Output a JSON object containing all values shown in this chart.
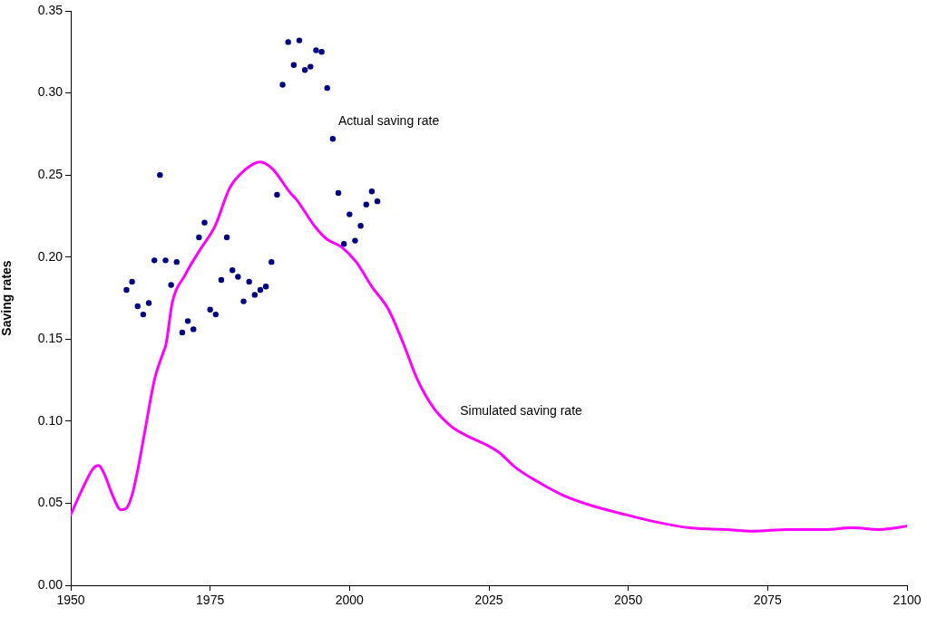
{
  "chart_data": {
    "type": "scatter",
    "ylabel": "Saving rates",
    "xlim": [
      1950,
      2100
    ],
    "xticks": [
      1950,
      1975,
      2000,
      2025,
      2050,
      2075,
      2100
    ],
    "ylim": [
      0,
      0.35
    ],
    "yticks": [
      {
        "value": 0,
        "label": "0.00"
      },
      {
        "value": 0.05,
        "label": "0.05"
      },
      {
        "value": 0.1,
        "label": "0.10"
      },
      {
        "value": 0.15,
        "label": "0.15"
      },
      {
        "value": 0.2,
        "label": "0.20"
      },
      {
        "value": 0.25,
        "label": "0.25"
      },
      {
        "value": 0.3,
        "label": "0.30"
      },
      {
        "value": 0.35,
        "label": "0.35"
      }
    ],
    "grid": false,
    "legend": false,
    "series": [
      {
        "name": "Actual saving rate",
        "marker": "circle",
        "color": "#000080",
        "x": [
          1960,
          1961,
          1962,
          1963,
          1964,
          1965,
          1966,
          1967,
          1968,
          1969,
          1970,
          1971,
          1972,
          1973,
          1974,
          1975,
          1976,
          1977,
          1978,
          1979,
          1980,
          1981,
          1982,
          1983,
          1984,
          1985,
          1986,
          1987,
          1988,
          1989,
          1990,
          1991,
          1992,
          1993,
          1994,
          1995,
          1996,
          1997,
          1998,
          1999,
          2000,
          2001,
          2002,
          2003,
          2004,
          2005
        ],
        "values": [
          0.18,
          0.185,
          0.17,
          0.165,
          0.172,
          0.198,
          0.25,
          0.198,
          0.183,
          0.197,
          0.154,
          0.161,
          0.156,
          0.212,
          0.221,
          0.168,
          0.165,
          0.186,
          0.212,
          0.192,
          0.188,
          0.173,
          0.185,
          0.177,
          0.18,
          0.182,
          0.197,
          0.238,
          0.305,
          0.331,
          0.317,
          0.332,
          0.314,
          0.316,
          0.326,
          0.325,
          0.303,
          0.272,
          0.239,
          0.208,
          0.226,
          0.21,
          0.219,
          0.232,
          0.24,
          0.234
        ]
      },
      {
        "name": "Simulated saving rate",
        "type": "line",
        "marker": "none",
        "line_style": "solid",
        "color": "#ff00ff",
        "x": [
          1950,
          1952,
          1954,
          1955,
          1956,
          1957.6,
          1959,
          1960,
          1961,
          1962,
          1963.3,
          1965,
          1966.6,
          1967.1,
          1968.2,
          1970.5,
          1973.1,
          1975.9,
          1978.5,
          1981.2,
          1984,
          1986.1,
          1989.4,
          1990.5,
          1993.7,
          1995.9,
          1998.6,
          2001.2,
          2004,
          2007,
          2009.7,
          2012.1,
          2015.1,
          2018.2,
          2021.1,
          2024.3,
          2026.8,
          2029.7,
          2033.3,
          2038.2,
          2043,
          2049.6,
          2054.4,
          2061,
          2067.5,
          2072.3,
          2078.8,
          2085.3,
          2090.2,
          2095.1,
          2100
        ],
        "values": [
          0.043,
          0.058,
          0.071,
          0.073,
          0.068,
          0.054,
          0.046,
          0.047,
          0.055,
          0.07,
          0.094,
          0.125,
          0.142,
          0.147,
          0.172,
          0.189,
          0.204,
          0.219,
          0.242,
          0.253,
          0.258,
          0.254,
          0.239,
          0.235,
          0.219,
          0.211,
          0.206,
          0.197,
          0.182,
          0.168,
          0.147,
          0.126,
          0.108,
          0.097,
          0.091,
          0.086,
          0.081,
          0.072,
          0.064,
          0.055,
          0.049,
          0.043,
          0.039,
          0.035,
          0.034,
          0.033,
          0.034,
          0.034,
          0.035,
          0.034,
          0.036
        ]
      }
    ]
  }
}
